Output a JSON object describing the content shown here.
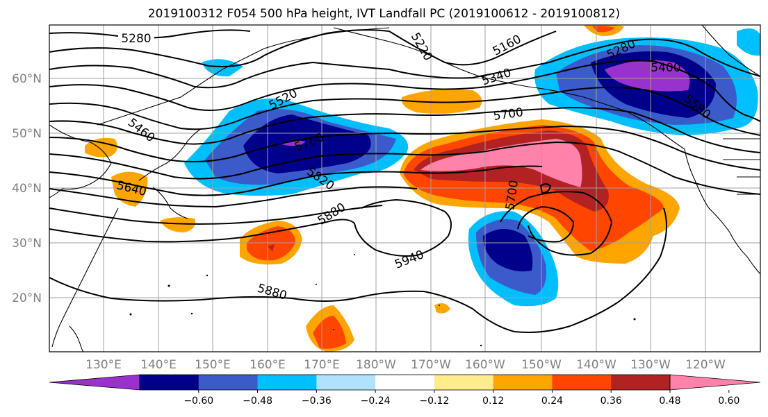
{
  "title": "2019100312 F054 500 hPa height, IVT Landfall PC (2019100612 - 2019100812)",
  "lat_labels": [
    "60°N",
    "50°N",
    "40°N",
    "30°N",
    "20°N"
  ],
  "lon_labels": [
    "130°E",
    "140°E",
    "150°E",
    "160°E",
    "170°E",
    "180°W",
    "170°W",
    "160°W",
    "150°W",
    "140°W",
    "130°W",
    "120°W"
  ],
  "contour_labels": [
    "5280",
    "5160",
    "5220",
    "5280",
    "5340",
    "5400",
    "5520",
    "5700",
    "5460",
    "5760",
    "5580",
    "5640",
    "5820",
    "5700",
    "5880",
    "5940",
    "5880"
  ],
  "colorbar": {
    "ticks": [
      "−0.60",
      "−0.48",
      "−0.36",
      "−0.24",
      "−0.12",
      "0.12",
      "0.24",
      "0.36",
      "0.48",
      "0.60"
    ],
    "colors": [
      "#9932cc",
      "#00008b",
      "#3a5bc9",
      "#00bfff",
      "#b0e2ff",
      "#ffffff",
      "#ffec8b",
      "#ffa500",
      "#ff4500",
      "#b22222",
      "#ff82ab"
    ]
  }
}
